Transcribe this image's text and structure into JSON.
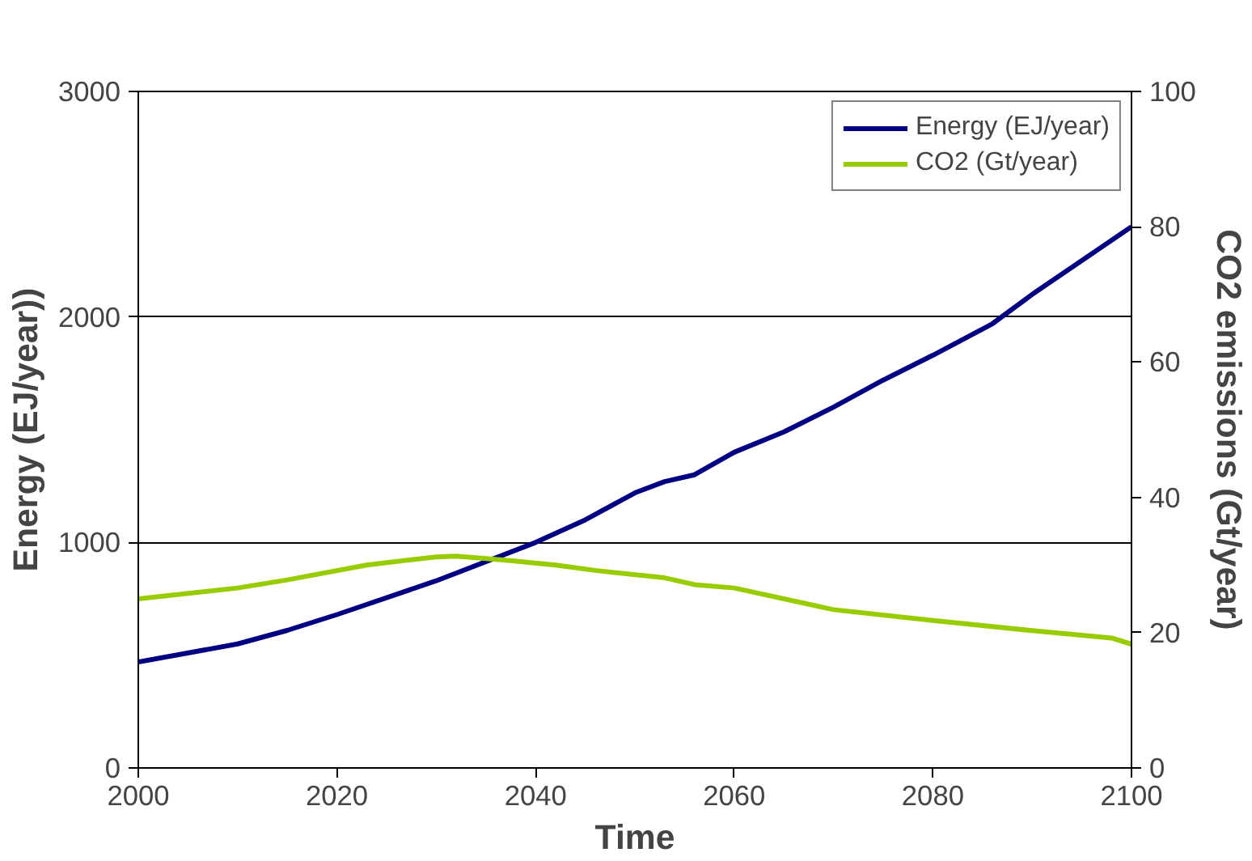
{
  "chart_data": {
    "type": "line",
    "xlabel": "Time",
    "ylabel": "Energy (EJ/year))",
    "y2label": "CO2 emissions (Gt/year)",
    "xlim": [
      2000,
      2100
    ],
    "xticks": [
      2000,
      2020,
      2040,
      2060,
      2080,
      2100
    ],
    "ylim": [
      0,
      3000
    ],
    "yticks": [
      0,
      1000,
      2000,
      3000
    ],
    "y2lim": [
      0,
      100
    ],
    "y2ticks": [
      0,
      20,
      40,
      60,
      80,
      100
    ],
    "grid": "y",
    "legend": "top right",
    "marker": "none",
    "line_style": "solid",
    "series": [
      {
        "name": "Energy (EJ/year)",
        "color": "#000080",
        "x": [
          2000,
          2010,
          2015,
          2020,
          2030,
          2040,
          2045,
          2050,
          2053,
          2056,
          2060,
          2065,
          2070,
          2075,
          2080,
          2086,
          2090,
          2100
        ],
        "values": [
          470,
          550,
          610,
          680,
          830,
          1000,
          1100,
          1220,
          1270,
          1300,
          1400,
          1490,
          1600,
          1720,
          1830,
          1970,
          2100,
          2400
        ]
      },
      {
        "name": "CO2 (Gt/year)",
        "color": "#99cc00",
        "axis": "y2",
        "x": [
          2000,
          2010,
          2015,
          2023,
          2030,
          2032,
          2037,
          2042,
          2046,
          2053,
          2056,
          2060,
          2070,
          2080,
          2090,
          2098,
          2100
        ],
        "values": [
          25,
          26.6,
          27.8,
          30,
          31.2,
          31.3,
          30.7,
          30,
          29.2,
          28.1,
          27.1,
          26.6,
          23.4,
          21.8,
          20.3,
          19.2,
          18.3
        ]
      }
    ]
  }
}
